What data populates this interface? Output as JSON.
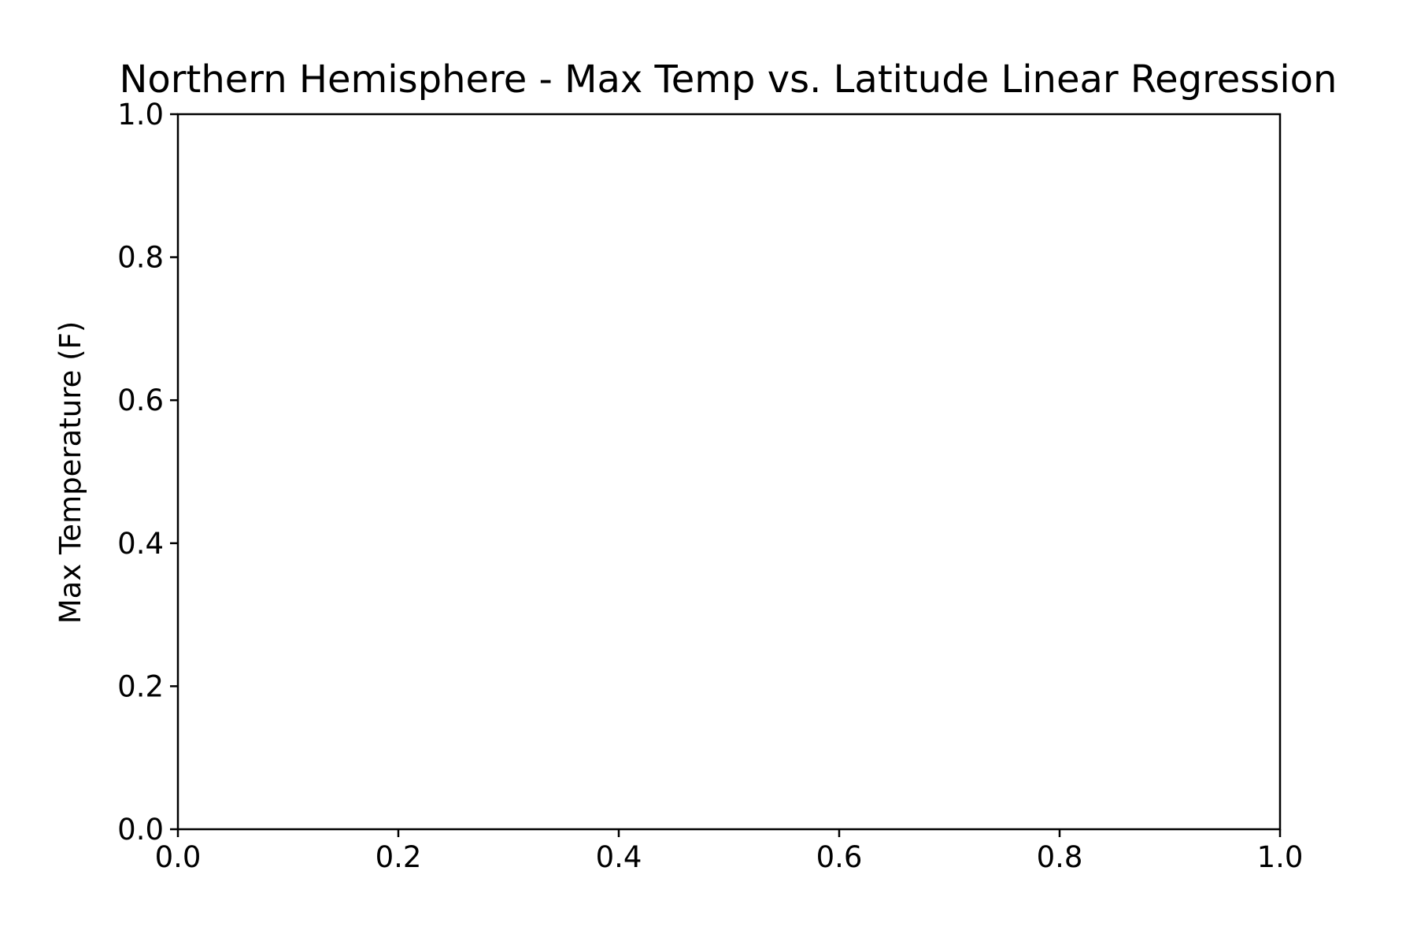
{
  "chart_data": {
    "type": "scatter",
    "title": "Northern Hemisphere - Max Temp vs. Latitude Linear Regression",
    "xlabel": "",
    "ylabel": "Max Temperature (F)",
    "xlim": [
      0.0,
      1.0
    ],
    "ylim": [
      0.0,
      1.0
    ],
    "xticks": [
      "0.0",
      "0.2",
      "0.4",
      "0.6",
      "0.8",
      "1.0"
    ],
    "yticks": [
      "0.0",
      "0.2",
      "0.4",
      "0.6",
      "0.8",
      "1.0"
    ],
    "grid": false,
    "series": [],
    "colors": {
      "axis": "#000000",
      "background": "#ffffff"
    }
  }
}
